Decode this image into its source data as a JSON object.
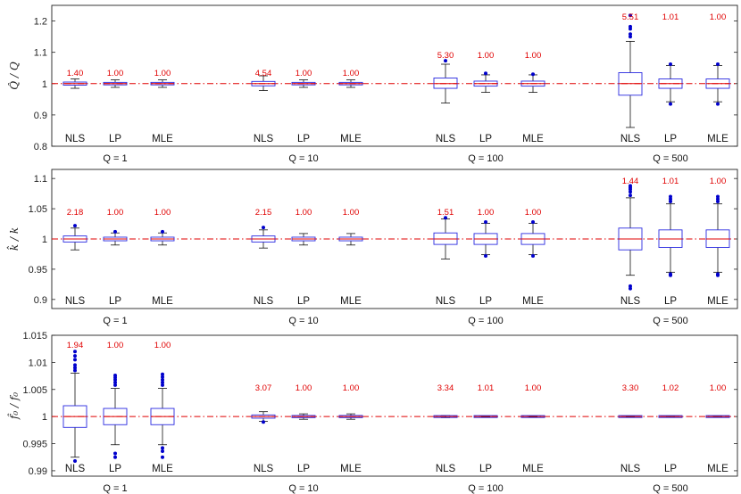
{
  "chart_data": {
    "type": "box",
    "methods": [
      "NLS",
      "LP",
      "MLE"
    ],
    "groups": [
      "Q = 1",
      "Q = 10",
      "Q = 100",
      "Q = 500"
    ],
    "colors": {
      "box": "#2a2ae0",
      "median": "#e00000",
      "whisker": "#111111",
      "outlier": "#0000cc",
      "reference": "#e00000",
      "ratio_text": "#e00000"
    },
    "panels": [
      {
        "ylabel": "Q̂ / Q",
        "ylim": [
          0.8,
          1.25
        ],
        "yticks": [
          0.8,
          0.9,
          1,
          1.1,
          1.2
        ],
        "ytick_labels": [
          "0.8",
          "0.9",
          "1",
          "1.1",
          "1.2"
        ],
        "reference": 1,
        "boxes": [
          {
            "group": "Q = 1",
            "method": "NLS",
            "ratio": "1.40",
            "q1": 0.995,
            "median": 1.0,
            "q3": 1.005,
            "wlo": 0.985,
            "whi": 1.015,
            "outliers": []
          },
          {
            "group": "Q = 1",
            "method": "LP",
            "ratio": "1.00",
            "q1": 0.996,
            "median": 1.0,
            "q3": 1.004,
            "wlo": 0.988,
            "whi": 1.012,
            "outliers": []
          },
          {
            "group": "Q = 1",
            "method": "MLE",
            "ratio": "1.00",
            "q1": 0.996,
            "median": 1.0,
            "q3": 1.004,
            "wlo": 0.988,
            "whi": 1.012,
            "outliers": []
          },
          {
            "group": "Q = 10",
            "method": "NLS",
            "ratio": "4.54",
            "q1": 0.993,
            "median": 1.0,
            "q3": 1.007,
            "wlo": 0.978,
            "whi": 1.025,
            "outliers": []
          },
          {
            "group": "Q = 10",
            "method": "LP",
            "ratio": "1.00",
            "q1": 0.996,
            "median": 1.0,
            "q3": 1.004,
            "wlo": 0.988,
            "whi": 1.012,
            "outliers": []
          },
          {
            "group": "Q = 10",
            "method": "MLE",
            "ratio": "1.00",
            "q1": 0.996,
            "median": 1.0,
            "q3": 1.004,
            "wlo": 0.988,
            "whi": 1.012,
            "outliers": []
          },
          {
            "group": "Q = 100",
            "method": "NLS",
            "ratio": "5.30",
            "q1": 0.985,
            "median": 1.0,
            "q3": 1.018,
            "wlo": 0.938,
            "whi": 1.062,
            "outliers": [
              1.073
            ]
          },
          {
            "group": "Q = 100",
            "method": "LP",
            "ratio": "1.00",
            "q1": 0.992,
            "median": 1.0,
            "q3": 1.008,
            "wlo": 0.972,
            "whi": 1.028,
            "outliers": [
              1.033
            ]
          },
          {
            "group": "Q = 100",
            "method": "MLE",
            "ratio": "1.00",
            "q1": 0.992,
            "median": 1.0,
            "q3": 1.008,
            "wlo": 0.972,
            "whi": 1.028,
            "outliers": [
              1.03
            ]
          },
          {
            "group": "Q = 500",
            "method": "NLS",
            "ratio": "5.51",
            "q1": 0.963,
            "median": 1.0,
            "q3": 1.035,
            "wlo": 0.86,
            "whi": 1.135,
            "outliers": [
              1.15,
              1.158,
              1.175,
              1.182,
              1.218
            ]
          },
          {
            "group": "Q = 500",
            "method": "LP",
            "ratio": "1.01",
            "q1": 0.985,
            "median": 1.0,
            "q3": 1.015,
            "wlo": 0.942,
            "whi": 1.058,
            "outliers": [
              0.935,
              1.062
            ]
          },
          {
            "group": "Q = 500",
            "method": "MLE",
            "ratio": "1.00",
            "q1": 0.985,
            "median": 1.0,
            "q3": 1.015,
            "wlo": 0.942,
            "whi": 1.058,
            "outliers": [
              0.935,
              1.062
            ]
          }
        ]
      },
      {
        "ylabel": "k̂ / k",
        "ylim": [
          0.885,
          1.115
        ],
        "yticks": [
          0.9,
          0.95,
          1,
          1.05,
          1.1
        ],
        "ytick_labels": [
          "0.9",
          "0.95",
          "1",
          "1.05",
          "1.1"
        ],
        "reference": 1,
        "boxes": [
          {
            "group": "Q = 1",
            "method": "NLS",
            "ratio": "2.18",
            "q1": 0.995,
            "median": 1.0,
            "q3": 1.005,
            "wlo": 0.982,
            "whi": 1.018,
            "outliers": [
              1.022
            ]
          },
          {
            "group": "Q = 1",
            "method": "LP",
            "ratio": "1.00",
            "q1": 0.997,
            "median": 1.0,
            "q3": 1.003,
            "wlo": 0.99,
            "whi": 1.01,
            "outliers": [
              1.012
            ]
          },
          {
            "group": "Q = 1",
            "method": "MLE",
            "ratio": "1.00",
            "q1": 0.997,
            "median": 1.0,
            "q3": 1.003,
            "wlo": 0.99,
            "whi": 1.01,
            "outliers": [
              1.012
            ]
          },
          {
            "group": "Q = 10",
            "method": "NLS",
            "ratio": "2.15",
            "q1": 0.995,
            "median": 1.0,
            "q3": 1.005,
            "wlo": 0.985,
            "whi": 1.015,
            "outliers": [
              1.019
            ]
          },
          {
            "group": "Q = 10",
            "method": "LP",
            "ratio": "1.00",
            "q1": 0.997,
            "median": 1.0,
            "q3": 1.003,
            "wlo": 0.99,
            "whi": 1.009,
            "outliers": []
          },
          {
            "group": "Q = 10",
            "method": "MLE",
            "ratio": "1.00",
            "q1": 0.997,
            "median": 1.0,
            "q3": 1.003,
            "wlo": 0.99,
            "whi": 1.009,
            "outliers": []
          },
          {
            "group": "Q = 100",
            "method": "NLS",
            "ratio": "1.51",
            "q1": 0.991,
            "median": 1.0,
            "q3": 1.01,
            "wlo": 0.967,
            "whi": 1.033,
            "outliers": [
              1.035
            ]
          },
          {
            "group": "Q = 100",
            "method": "LP",
            "ratio": "1.00",
            "q1": 0.991,
            "median": 1.0,
            "q3": 1.009,
            "wlo": 0.974,
            "whi": 1.026,
            "outliers": [
              0.972,
              1.028
            ]
          },
          {
            "group": "Q = 100",
            "method": "MLE",
            "ratio": "1.00",
            "q1": 0.991,
            "median": 1.0,
            "q3": 1.009,
            "wlo": 0.974,
            "whi": 1.026,
            "outliers": [
              0.972,
              1.028
            ]
          },
          {
            "group": "Q = 500",
            "method": "NLS",
            "ratio": "1.44",
            "q1": 0.982,
            "median": 1.0,
            "q3": 1.018,
            "wlo": 0.94,
            "whi": 1.068,
            "outliers": [
              0.918,
              0.922,
              1.072,
              1.078,
              1.082,
              1.085,
              1.088
            ]
          },
          {
            "group": "Q = 500",
            "method": "LP",
            "ratio": "1.01",
            "q1": 0.986,
            "median": 1.0,
            "q3": 1.015,
            "wlo": 0.945,
            "whi": 1.058,
            "outliers": [
              0.94,
              0.942,
              1.062,
              1.066,
              1.07
            ]
          },
          {
            "group": "Q = 500",
            "method": "MLE",
            "ratio": "1.00",
            "q1": 0.986,
            "median": 1.0,
            "q3": 1.015,
            "wlo": 0.945,
            "whi": 1.058,
            "outliers": [
              0.94,
              0.942,
              1.062,
              1.066,
              1.07
            ]
          }
        ]
      },
      {
        "ylabel": "f̂₀ / f₀",
        "ylim": [
          0.989,
          1.015
        ],
        "yticks": [
          0.99,
          0.995,
          1,
          1.005,
          1.01,
          1.015
        ],
        "ytick_labels": [
          "0.99",
          "0.995",
          "1",
          "1.005",
          "1.01",
          "1.015"
        ],
        "reference": 1,
        "boxes": [
          {
            "group": "Q = 1",
            "method": "NLS",
            "ratio": "1.94",
            "q1": 0.998,
            "median": 1.0,
            "q3": 1.002,
            "wlo": 0.9925,
            "whi": 1.008,
            "outliers": [
              0.9918,
              1.0085,
              1.009,
              1.0095,
              1.0105,
              1.0112,
              1.012
            ]
          },
          {
            "group": "Q = 1",
            "method": "LP",
            "ratio": "1.00",
            "q1": 0.9985,
            "median": 1.0,
            "q3": 1.0015,
            "wlo": 0.9948,
            "whi": 1.0052,
            "outliers": [
              0.9932,
              0.9925,
              1.0058,
              1.0063,
              1.0068,
              1.0072,
              1.0076
            ]
          },
          {
            "group": "Q = 1",
            "method": "MLE",
            "ratio": "1.00",
            "q1": 0.9985,
            "median": 1.0,
            "q3": 1.0015,
            "wlo": 0.9948,
            "whi": 1.0052,
            "outliers": [
              0.9942,
              0.9936,
              0.9925,
              1.0058,
              1.0063,
              1.0068,
              1.0073,
              1.0078
            ]
          },
          {
            "group": "Q = 10",
            "method": "NLS",
            "ratio": "3.07",
            "q1": 0.9997,
            "median": 1.0,
            "q3": 1.0003,
            "wlo": 0.9991,
            "whi": 1.0009,
            "outliers": [
              0.999
            ]
          },
          {
            "group": "Q = 10",
            "method": "LP",
            "ratio": "1.00",
            "q1": 0.9998,
            "median": 1.0,
            "q3": 1.0002,
            "wlo": 0.9995,
            "whi": 1.0005,
            "outliers": []
          },
          {
            "group": "Q = 10",
            "method": "MLE",
            "ratio": "1.00",
            "q1": 0.9998,
            "median": 1.0,
            "q3": 1.0002,
            "wlo": 0.9995,
            "whi": 1.0005,
            "outliers": []
          },
          {
            "group": "Q = 100",
            "method": "NLS",
            "ratio": "3.34",
            "q1": 0.99995,
            "median": 1.0,
            "q3": 1.00005,
            "wlo": 0.9998,
            "whi": 1.0002,
            "outliers": []
          },
          {
            "group": "Q = 100",
            "method": "LP",
            "ratio": "1.01",
            "q1": 0.99997,
            "median": 1.0,
            "q3": 1.00003,
            "wlo": 0.9999,
            "whi": 1.0001,
            "outliers": []
          },
          {
            "group": "Q = 100",
            "method": "MLE",
            "ratio": "1.00",
            "q1": 0.99997,
            "median": 1.0,
            "q3": 1.00003,
            "wlo": 0.9999,
            "whi": 1.0001,
            "outliers": []
          },
          {
            "group": "Q = 500",
            "method": "NLS",
            "ratio": "3.30",
            "q1": 0.99998,
            "median": 1.0,
            "q3": 1.00002,
            "wlo": 0.99994,
            "whi": 1.00006,
            "outliers": []
          },
          {
            "group": "Q = 500",
            "method": "LP",
            "ratio": "1.02",
            "q1": 0.99999,
            "median": 1.0,
            "q3": 1.00001,
            "wlo": 0.99997,
            "whi": 1.00003,
            "outliers": []
          },
          {
            "group": "Q = 500",
            "method": "MLE",
            "ratio": "1.00",
            "q1": 0.99999,
            "median": 1.0,
            "q3": 1.00001,
            "wlo": 0.99997,
            "whi": 1.00003,
            "outliers": []
          }
        ]
      }
    ]
  }
}
